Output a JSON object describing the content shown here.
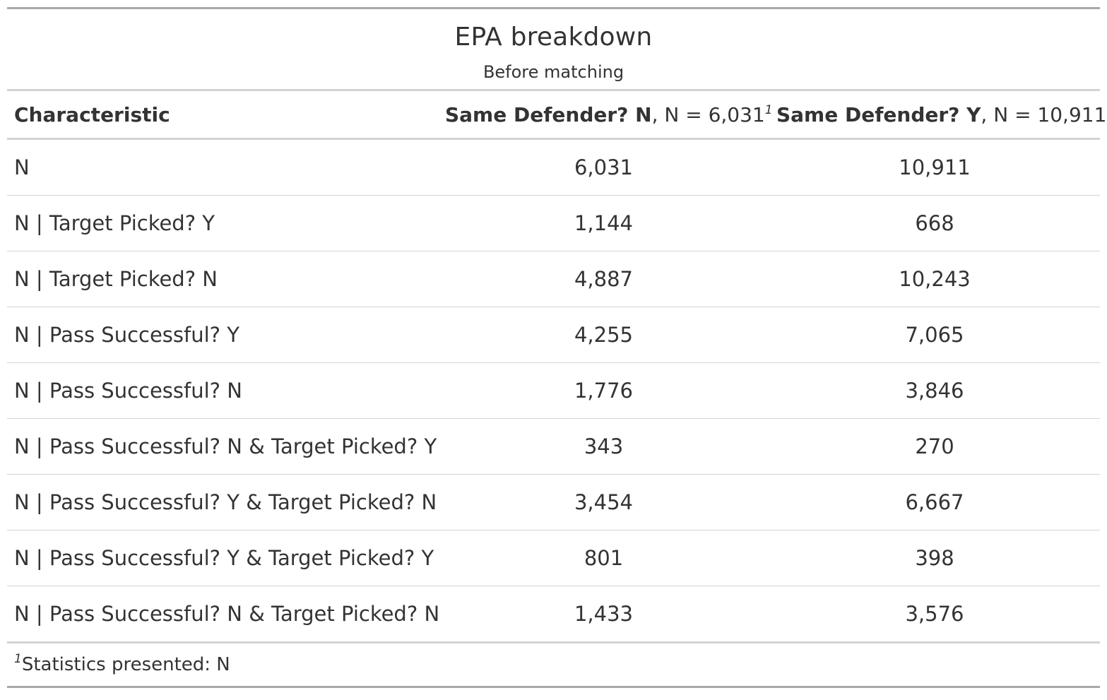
{
  "title": "EPA breakdown",
  "subtitle": "Before matching",
  "columns": [
    {
      "label": "Characteristic"
    },
    {
      "label_bold": "Same Defender? N",
      "label_rest": ", N = 6,031",
      "footnote_mark": "1"
    },
    {
      "label_bold": "Same Defender? Y",
      "label_rest": ", N = 10,911",
      "footnote_mark": "1"
    }
  ],
  "rows": [
    {
      "label": "N",
      "n": "6,031",
      "y": "10,911"
    },
    {
      "label": "N | Target Picked? Y",
      "n": "1,144",
      "y": "668"
    },
    {
      "label": "N | Target Picked? N",
      "n": "4,887",
      "y": "10,243"
    },
    {
      "label": "N | Pass Successful? Y",
      "n": "4,255",
      "y": "7,065"
    },
    {
      "label": "N | Pass Successful? N",
      "n": "1,776",
      "y": "3,846"
    },
    {
      "label": "N | Pass Successful? N & Target Picked? Y",
      "n": "343",
      "y": "270"
    },
    {
      "label": "N | Pass Successful? Y & Target Picked? N",
      "n": "3,454",
      "y": "6,667"
    },
    {
      "label": "N | Pass Successful? Y & Target Picked? Y",
      "n": "801",
      "y": "398"
    },
    {
      "label": "N | Pass Successful? N & Target Picked? N",
      "n": "1,433",
      "y": "3,576"
    }
  ],
  "footnote": {
    "mark": "1",
    "text": "Statistics presented: N"
  }
}
